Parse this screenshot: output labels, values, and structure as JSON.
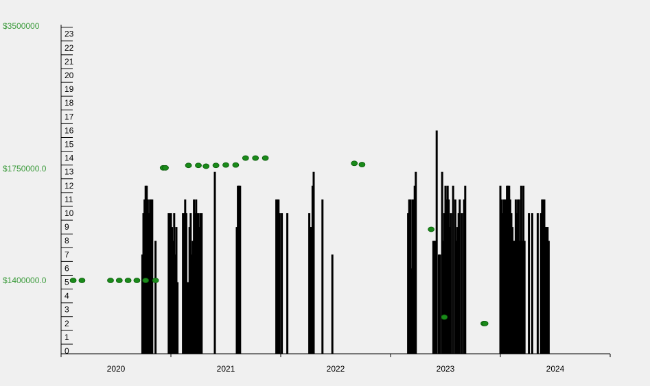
{
  "chart_data": {
    "type": "bar",
    "left_axis": {
      "labels": [
        "$3500000",
        "$1750000.0",
        "$1400000.0"
      ],
      "values": [
        3500000,
        1750000,
        1400000
      ]
    },
    "y_ticks": [
      "0",
      "1",
      "2",
      "3",
      "4",
      "5",
      "6",
      "7",
      "8",
      "9",
      "10",
      "11",
      "12",
      "13",
      "14",
      "15",
      "16",
      "17",
      "18",
      "19",
      "20",
      "21",
      "22",
      "23"
    ],
    "ylim": [
      0,
      23
    ],
    "x_years": [
      "2020",
      "2021",
      "2022",
      "2023",
      "2024"
    ],
    "xlim": [
      2019.5,
      2024.5
    ],
    "series": [
      {
        "kind": "bars",
        "color": "#000000",
        "points": [
          [
            2020.24,
            7
          ],
          [
            2020.25,
            10
          ],
          [
            2020.26,
            11
          ],
          [
            2020.27,
            12
          ],
          [
            2020.28,
            12
          ],
          [
            2020.29,
            11
          ],
          [
            2020.3,
            10
          ],
          [
            2020.31,
            11
          ],
          [
            2020.32,
            11
          ],
          [
            2020.33,
            11
          ],
          [
            2020.36,
            8
          ],
          [
            2020.48,
            10
          ],
          [
            2020.49,
            10
          ],
          [
            2020.5,
            10
          ],
          [
            2020.51,
            9
          ],
          [
            2020.52,
            8
          ],
          [
            2020.53,
            10
          ],
          [
            2020.54,
            7
          ],
          [
            2020.55,
            9
          ],
          [
            2020.56,
            5
          ],
          [
            2020.61,
            10
          ],
          [
            2020.62,
            10
          ],
          [
            2020.63,
            11
          ],
          [
            2020.64,
            10
          ],
          [
            2020.65,
            5
          ],
          [
            2020.66,
            5
          ],
          [
            2020.67,
            9
          ],
          [
            2020.68,
            10
          ],
          [
            2020.69,
            7
          ],
          [
            2020.7,
            8
          ],
          [
            2020.71,
            11
          ],
          [
            2020.72,
            10
          ],
          [
            2020.73,
            11
          ],
          [
            2020.74,
            10
          ],
          [
            2020.75,
            10
          ],
          [
            2020.76,
            9
          ],
          [
            2020.77,
            10
          ],
          [
            2020.78,
            10
          ],
          [
            2020.9,
            13
          ],
          [
            2021.1,
            9
          ],
          [
            2021.11,
            12
          ],
          [
            2021.12,
            12
          ],
          [
            2021.13,
            12
          ],
          [
            2021.46,
            11
          ],
          [
            2021.47,
            11
          ],
          [
            2021.48,
            11
          ],
          [
            2021.49,
            10
          ],
          [
            2021.51,
            10
          ],
          [
            2021.56,
            10
          ],
          [
            2021.76,
            10
          ],
          [
            2021.77,
            9
          ],
          [
            2021.78,
            9
          ],
          [
            2021.79,
            12
          ],
          [
            2021.8,
            13
          ],
          [
            2021.88,
            11
          ],
          [
            2021.97,
            7
          ],
          [
            2022.66,
            10
          ],
          [
            2022.67,
            11
          ],
          [
            2022.68,
            11
          ],
          [
            2022.69,
            6
          ],
          [
            2022.7,
            11
          ],
          [
            2022.71,
            11
          ],
          [
            2022.72,
            12
          ],
          [
            2022.73,
            13
          ],
          [
            2022.89,
            8
          ],
          [
            2022.9,
            8
          ],
          [
            2022.91,
            8
          ],
          [
            2022.92,
            16
          ],
          [
            2022.94,
            7
          ],
          [
            2022.95,
            7
          ],
          [
            2022.97,
            13
          ],
          [
            2022.98,
            8
          ],
          [
            2022.99,
            10
          ],
          [
            2023.0,
            12
          ],
          [
            2023.01,
            11
          ],
          [
            2023.02,
            12
          ],
          [
            2023.03,
            11
          ],
          [
            2023.04,
            9
          ],
          [
            2023.05,
            10
          ],
          [
            2023.07,
            12
          ],
          [
            2023.09,
            11
          ],
          [
            2023.1,
            8
          ],
          [
            2023.11,
            9
          ],
          [
            2023.12,
            10
          ],
          [
            2023.13,
            11
          ],
          [
            2023.15,
            10
          ],
          [
            2023.17,
            11
          ],
          [
            2023.18,
            12
          ],
          [
            2023.5,
            12
          ],
          [
            2023.51,
            11
          ],
          [
            2023.52,
            10
          ],
          [
            2023.53,
            11
          ],
          [
            2023.54,
            11
          ],
          [
            2023.55,
            11
          ],
          [
            2023.56,
            12
          ],
          [
            2023.57,
            12
          ],
          [
            2023.58,
            12
          ],
          [
            2023.59,
            11
          ],
          [
            2023.6,
            10
          ],
          [
            2023.61,
            9
          ],
          [
            2023.62,
            8
          ],
          [
            2023.63,
            8
          ],
          [
            2023.64,
            11
          ],
          [
            2023.65,
            10
          ],
          [
            2023.66,
            11
          ],
          [
            2023.67,
            11
          ],
          [
            2023.68,
            8
          ],
          [
            2023.69,
            12
          ],
          [
            2023.7,
            8
          ],
          [
            2023.71,
            12
          ],
          [
            2023.72,
            8
          ],
          [
            2023.76,
            10
          ],
          [
            2023.79,
            10
          ],
          [
            2023.84,
            10
          ],
          [
            2023.87,
            10
          ],
          [
            2023.88,
            11
          ],
          [
            2023.89,
            11
          ],
          [
            2023.9,
            11
          ],
          [
            2023.91,
            9
          ],
          [
            2023.92,
            9
          ],
          [
            2023.93,
            9
          ],
          [
            2023.94,
            8
          ]
        ]
      },
      {
        "kind": "markers",
        "color": "#1a8a1a",
        "axis": "money",
        "points": [
          [
            2019.61,
            1400000
          ],
          [
            2019.69,
            1400000
          ],
          [
            2019.95,
            1400000
          ],
          [
            2020.03,
            1400000
          ],
          [
            2020.11,
            1400000
          ],
          [
            2020.19,
            1400000
          ],
          [
            2020.27,
            1400000
          ],
          [
            2020.36,
            1400000
          ],
          [
            2020.43,
            1760000
          ],
          [
            2020.45,
            1760000
          ],
          [
            2020.66,
            1790000
          ],
          [
            2020.75,
            1790000
          ],
          [
            2020.82,
            1780000
          ],
          [
            2020.91,
            1790000
          ],
          [
            2021.0,
            1795000
          ],
          [
            2021.09,
            1795000
          ],
          [
            2021.18,
            1880000
          ],
          [
            2021.27,
            1880000
          ],
          [
            2021.36,
            1880000
          ],
          [
            2022.17,
            1815000
          ],
          [
            2022.24,
            1800000
          ],
          [
            2022.87,
            1560000
          ],
          [
            2022.99,
            1285000
          ],
          [
            2023.35,
            1265000
          ],
          [
            2023.36,
            1265000
          ]
        ]
      }
    ]
  }
}
